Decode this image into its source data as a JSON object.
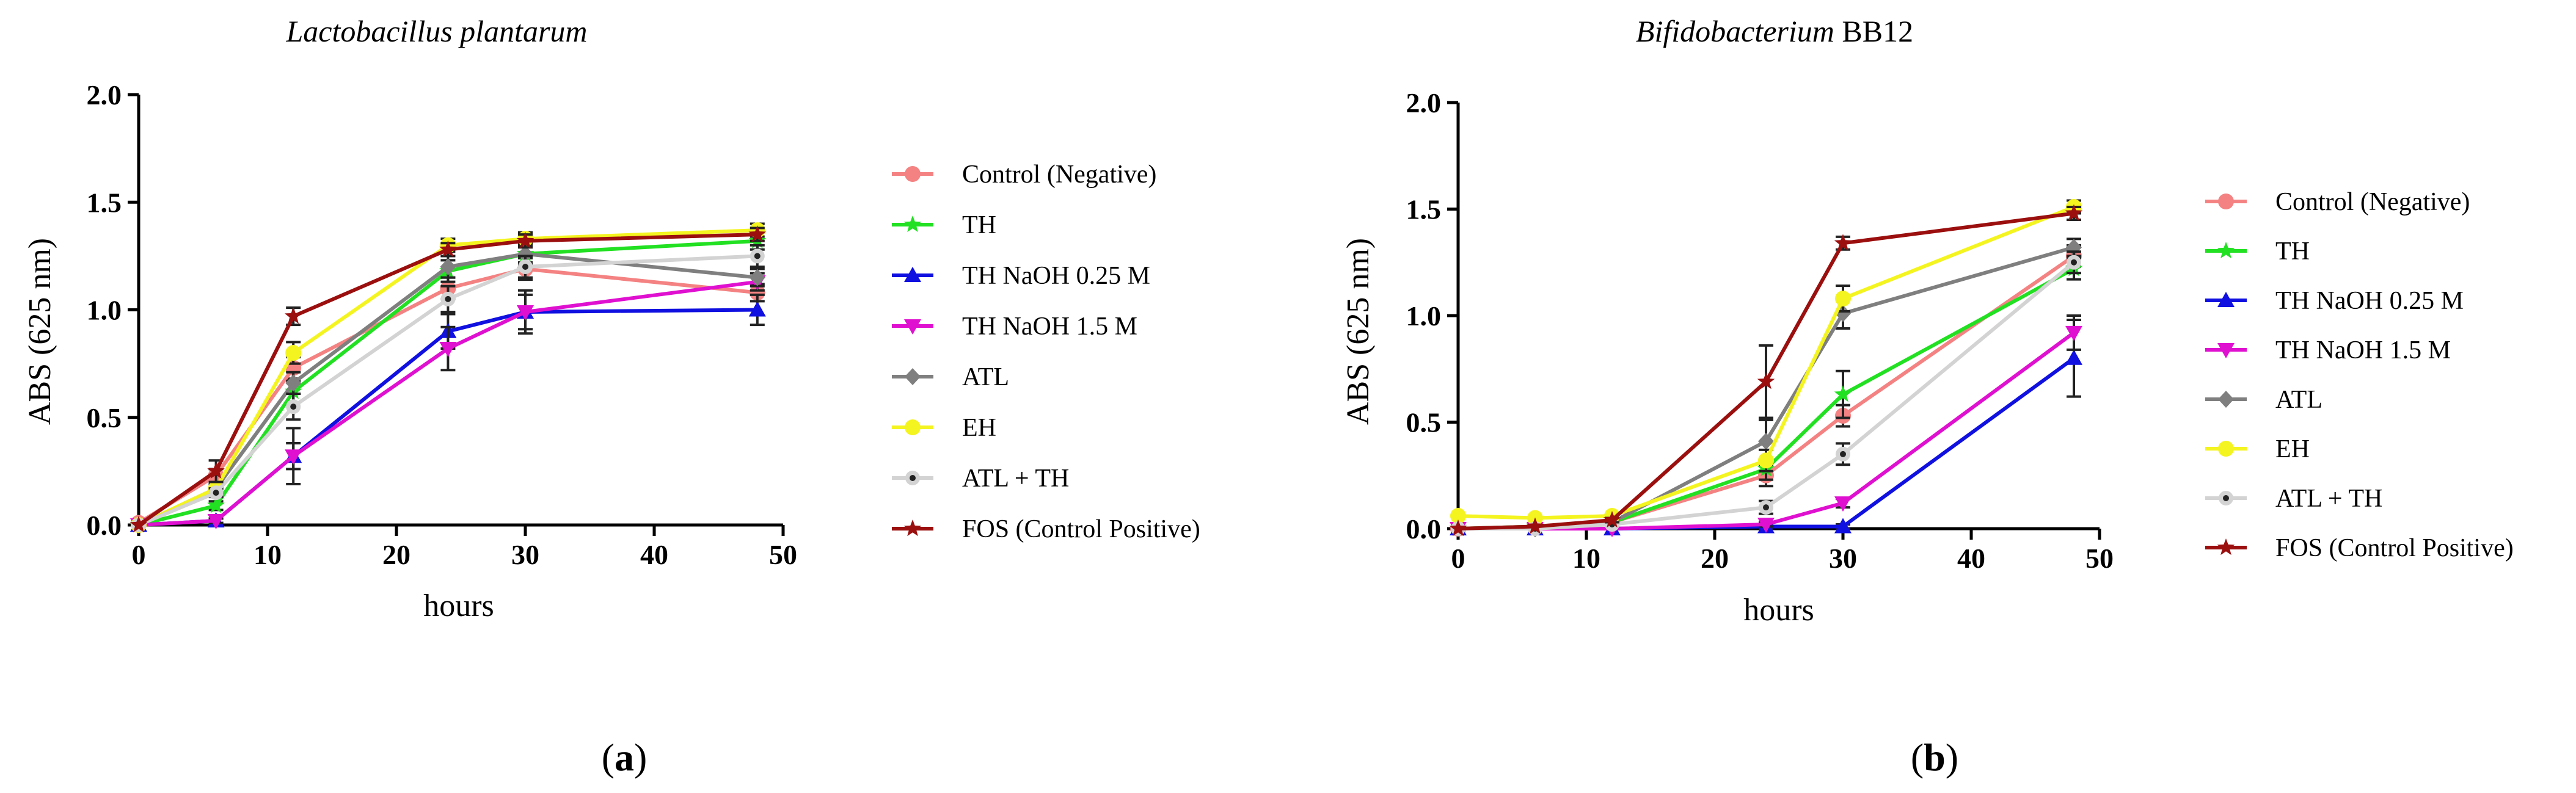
{
  "series_meta": [
    {
      "name": "Control (Negative)",
      "color": "#F48282",
      "marker": "circle"
    },
    {
      "name": "TH",
      "color": "#22E022",
      "marker": "star"
    },
    {
      "name": "TH NaOH 0.25 M",
      "color": "#1010E0",
      "marker": "triangle-up"
    },
    {
      "name": "TH NaOH 1.5 M",
      "color": "#E010D0",
      "marker": "triangle-down"
    },
    {
      "name": "ATL",
      "color": "#7F7F7F",
      "marker": "diamond"
    },
    {
      "name": "EH",
      "color": "#F4F420",
      "marker": "circle"
    },
    {
      "name": "ATL + TH",
      "color": "#D3D3D3",
      "marker": "dot-circle"
    },
    {
      "name": "FOS (Control Positive)",
      "color": "#9B0F0F",
      "marker": "star"
    }
  ],
  "chart_data": [
    {
      "type": "line",
      "panel": "a",
      "panel_label": [
        "(",
        "a",
        ")"
      ],
      "title": "Lactobacillus plantarum",
      "title_italic": "Lactobacillus plantarum",
      "title_plain": "",
      "xlabel": "hours",
      "ylabel": "ABS (625 nm)",
      "xlim": [
        0,
        50
      ],
      "ylim": [
        0,
        2.0
      ],
      "xticks": [
        0,
        10,
        20,
        30,
        40,
        50
      ],
      "yticks": [
        "0.0",
        "0.5",
        "1.0",
        "1.5",
        "2.0"
      ],
      "x": [
        0,
        6,
        12,
        24,
        30,
        48
      ],
      "series": [
        {
          "name": "Control (Negative)",
          "values": [
            0.01,
            0.23,
            0.73,
            1.1,
            1.19,
            1.08
          ],
          "errors": [
            0,
            0.03,
            0.05,
            0.05,
            0.05,
            0.04
          ]
        },
        {
          "name": "TH",
          "values": [
            0.0,
            0.09,
            0.62,
            1.18,
            1.26,
            1.32
          ],
          "errors": [
            0,
            0.02,
            0.05,
            0.05,
            0.05,
            0.04
          ]
        },
        {
          "name": "TH NaOH 0.25 M",
          "values": [
            0.0,
            0.02,
            0.32,
            0.9,
            0.99,
            1.0
          ],
          "errors": [
            0,
            0.01,
            0.13,
            0.08,
            0.1,
            0.07
          ]
        },
        {
          "name": "TH NaOH 1.5 M",
          "values": [
            0.0,
            0.02,
            0.32,
            0.82,
            0.99,
            1.13
          ],
          "errors": [
            0,
            0.01,
            0.06,
            0.1,
            0.08,
            0.04
          ]
        },
        {
          "name": "ATL",
          "values": [
            0.0,
            0.17,
            0.66,
            1.2,
            1.26,
            1.15
          ],
          "errors": [
            0,
            0.02,
            0.05,
            0.05,
            0.04,
            0.04
          ]
        },
        {
          "name": "EH",
          "values": [
            0.0,
            0.17,
            0.8,
            1.3,
            1.33,
            1.37
          ],
          "errors": [
            0,
            0.02,
            0.05,
            0.03,
            0.03,
            0.03
          ]
        },
        {
          "name": "ATL + TH",
          "values": [
            0.0,
            0.15,
            0.55,
            1.05,
            1.2,
            1.25
          ],
          "errors": [
            0,
            0.02,
            0.06,
            0.06,
            0.05,
            0.05
          ]
        },
        {
          "name": "FOS (Control Positive)",
          "values": [
            0.0,
            0.25,
            0.97,
            1.28,
            1.32,
            1.35
          ],
          "errors": [
            0,
            0.05,
            0.04,
            0.03,
            0.03,
            0.03
          ]
        }
      ]
    },
    {
      "type": "line",
      "panel": "b",
      "panel_label": [
        "(",
        "b",
        ")"
      ],
      "title": "Bifidobacterium BB12",
      "title_italic": "Bifidobacterium",
      "title_plain": " BB12",
      "xlabel": "hours",
      "ylabel": "ABS (625 nm)",
      "xlim": [
        0,
        50
      ],
      "ylim": [
        0,
        2.0
      ],
      "xticks": [
        0,
        10,
        20,
        30,
        40,
        50
      ],
      "yticks": [
        "0.0",
        "0.5",
        "1.0",
        "1.5",
        "2.0"
      ],
      "x": [
        0,
        6,
        12,
        24,
        30,
        48
      ],
      "series": [
        {
          "name": "Control (Negative)",
          "values": [
            0.0,
            0.01,
            0.03,
            0.25,
            0.53,
            1.28
          ],
          "errors": [
            0,
            0.01,
            0.01,
            0.05,
            0.05,
            0.05
          ]
        },
        {
          "name": "TH",
          "values": [
            0.0,
            0.01,
            0.03,
            0.28,
            0.63,
            1.22
          ],
          "errors": [
            0,
            0.01,
            0.01,
            0.05,
            0.11,
            0.05
          ]
        },
        {
          "name": "TH NaOH 0.25 M",
          "values": [
            0.0,
            0.0,
            0.0,
            0.01,
            0.01,
            0.8
          ],
          "errors": [
            0,
            0,
            0,
            0.01,
            0.01,
            0.18
          ]
        },
        {
          "name": "TH NaOH 1.5 M",
          "values": [
            0.0,
            0.0,
            0.0,
            0.02,
            0.12,
            0.92
          ],
          "errors": [
            0,
            0,
            0,
            0.01,
            0.02,
            0.08
          ]
        },
        {
          "name": "ATL",
          "values": [
            0.0,
            0.0,
            0.03,
            0.41,
            1.01,
            1.32
          ],
          "errors": [
            0,
            0,
            0.01,
            0.1,
            0.07,
            0.04
          ]
        },
        {
          "name": "EH",
          "values": [
            0.06,
            0.05,
            0.06,
            0.32,
            1.08,
            1.51
          ],
          "errors": [
            0,
            0,
            0,
            0.05,
            0.06,
            0.03
          ]
        },
        {
          "name": "ATL + TH",
          "values": [
            0.0,
            0.0,
            0.02,
            0.1,
            0.35,
            1.25
          ],
          "errors": [
            0,
            0,
            0,
            0.03,
            0.05,
            0.05
          ]
        },
        {
          "name": "FOS (Control Positive)",
          "values": [
            0.0,
            0.01,
            0.04,
            0.69,
            1.34,
            1.48
          ],
          "errors": [
            0,
            0,
            0.01,
            0.17,
            0.03,
            0.03
          ]
        }
      ]
    }
  ]
}
